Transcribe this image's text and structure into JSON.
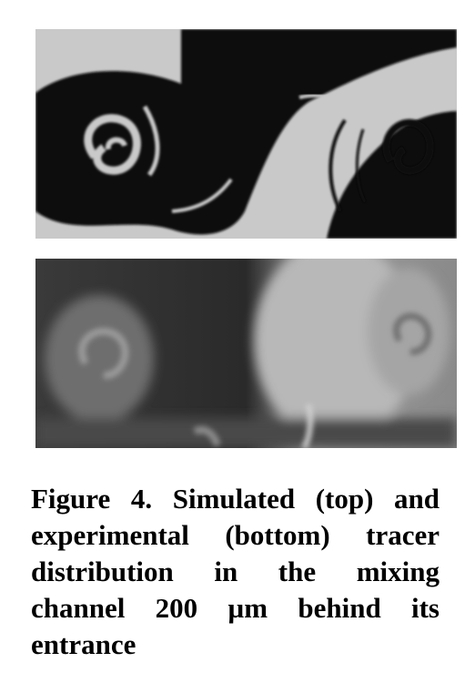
{
  "figure": {
    "caption": "Figure 4. Simulated (top) and experimental (bottom) tracer distribution in the mixing channel 200 µm behind its entrance"
  },
  "colors": {
    "sim_light": "#c9c9c9",
    "sim_dark": "#0c0c0c",
    "exp_light": "#b8b8b8",
    "exp_dark": "#1e1e1e"
  }
}
